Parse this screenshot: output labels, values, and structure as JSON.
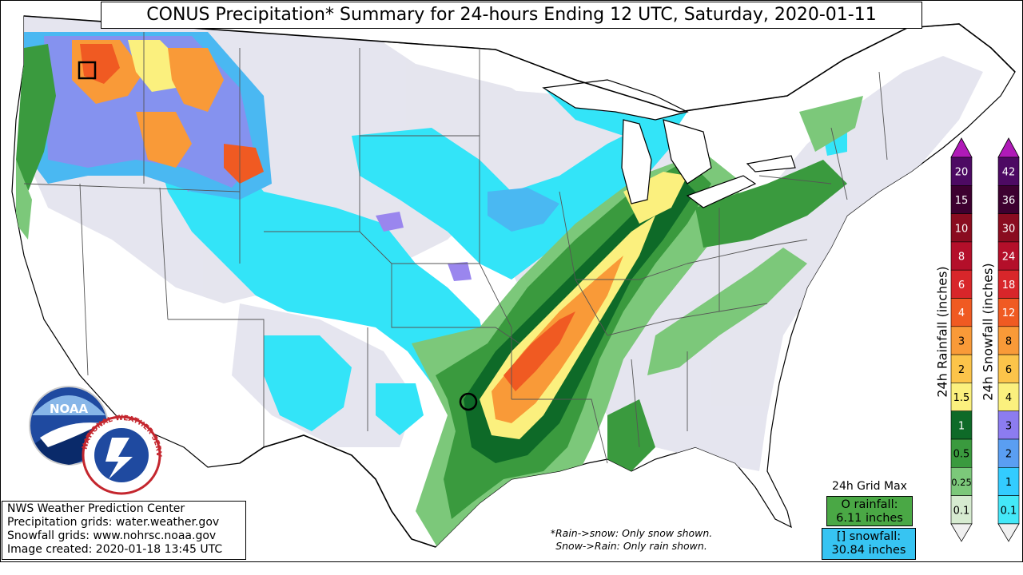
{
  "title": "CONUS Precipitation* Summary for 24-hours Ending 12 UTC, Saturday, 2020-01-11",
  "info": {
    "line1": "NWS Weather Prediction Center",
    "line2": "Precipitation grids: water.weather.gov",
    "line3": "Snowfall grids: www.nohrsc.noaa.gov",
    "line4": "Image created: 2020-01-18 13:45 UTC"
  },
  "notes": {
    "line1": "*Rain->snow: Only snow shown.",
    "line2": "Snow->Rain: Only rain shown."
  },
  "grid_max": {
    "label": "24h Grid Max",
    "rain_line1": "O rainfall:",
    "rain_line2": "6.11 inches",
    "snow_line1": "[] snowfall:",
    "snow_line2": "30.84 inches"
  },
  "logos": {
    "noaa": "NOAA",
    "nws": "NATIONAL WEATHER SERVICE"
  },
  "rain_scale": {
    "label": "24h Rainfall (inches)",
    "levels": [
      {
        "value": "20",
        "color": "#4d0a63"
      },
      {
        "value": "15",
        "color": "#3d0030"
      },
      {
        "value": "10",
        "color": "#8a0c20"
      },
      {
        "value": "8",
        "color": "#b40f2a"
      },
      {
        "value": "6",
        "color": "#d8262a"
      },
      {
        "value": "4",
        "color": "#f05a22"
      },
      {
        "value": "3",
        "color": "#f99a38"
      },
      {
        "value": "2",
        "color": "#fcc44a"
      },
      {
        "value": "1.5",
        "color": "#fbf07e"
      },
      {
        "value": "1",
        "color": "#0e6a28"
      },
      {
        "value": "0.5",
        "color": "#3a9a3e"
      },
      {
        "value": "0.25",
        "color": "#7cc87a"
      },
      {
        "value": "0.1",
        "color": "#d6ebd0"
      }
    ]
  },
  "snow_scale": {
    "label": "24h Snowfall (inches)",
    "levels": [
      {
        "value": "42",
        "color": "#4d0a63"
      },
      {
        "value": "36",
        "color": "#3d0030"
      },
      {
        "value": "30",
        "color": "#8a0c20"
      },
      {
        "value": "24",
        "color": "#b40f2a"
      },
      {
        "value": "18",
        "color": "#d8262a"
      },
      {
        "value": "12",
        "color": "#f05a22"
      },
      {
        "value": "8",
        "color": "#f99a38"
      },
      {
        "value": "6",
        "color": "#fcc44a"
      },
      {
        "value": "4",
        "color": "#fbf07e"
      },
      {
        "value": "3",
        "color": "#8c7cf0"
      },
      {
        "value": "2",
        "color": "#5a9ef2"
      },
      {
        "value": "1",
        "color": "#33ccff"
      },
      {
        "value": "0.1",
        "color": "#44e8f8"
      }
    ]
  },
  "colors": {
    "trace": "#e4e4ee",
    "snow_light": "#33e4f8",
    "snow_mid": "#4ab8f2",
    "snow_heavy": "#9a86ee",
    "rain_light": "#7cc87a",
    "rain_mid": "#3a9a3e",
    "rain_heavy": "#0e6a28",
    "rain_yellow": "#fbf07e",
    "rain_orange": "#f99a38",
    "rain_red": "#f05a22"
  }
}
